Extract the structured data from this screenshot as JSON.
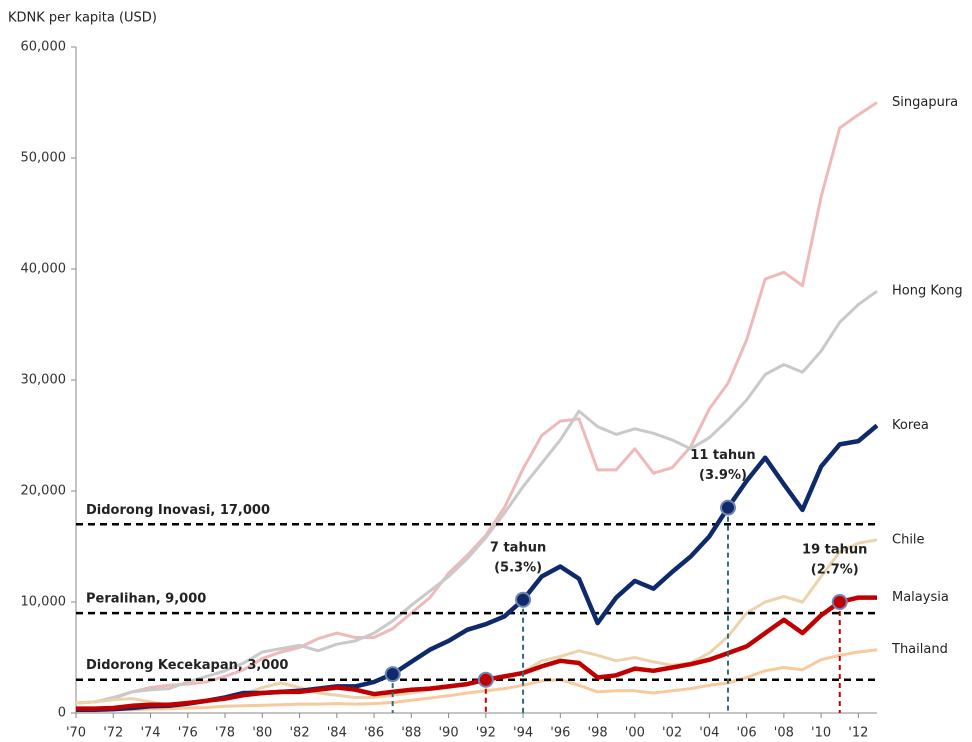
{
  "chart_data": {
    "type": "line",
    "y_label": "KDNK per kapita (USD)",
    "xlim": [
      1970,
      2013
    ],
    "ylim": [
      0,
      60000
    ],
    "x": [
      1970,
      1971,
      1972,
      1973,
      1974,
      1975,
      1976,
      1977,
      1978,
      1979,
      1980,
      1981,
      1982,
      1983,
      1984,
      1985,
      1986,
      1987,
      1988,
      1989,
      1990,
      1991,
      1992,
      1993,
      1994,
      1995,
      1996,
      1997,
      1998,
      1999,
      2000,
      2001,
      2002,
      2003,
      2004,
      2005,
      2006,
      2007,
      2008,
      2009,
      2010,
      2011,
      2012,
      2013
    ],
    "xticks": [
      {
        "value": 1970,
        "label": "'70"
      },
      {
        "value": 1972,
        "label": "'72"
      },
      {
        "value": 1974,
        "label": "'74"
      },
      {
        "value": 1976,
        "label": "'76"
      },
      {
        "value": 1978,
        "label": "'78"
      },
      {
        "value": 1980,
        "label": "'80"
      },
      {
        "value": 1982,
        "label": "'82"
      },
      {
        "value": 1984,
        "label": "'84"
      },
      {
        "value": 1986,
        "label": "'86"
      },
      {
        "value": 1988,
        "label": "'88"
      },
      {
        "value": 1990,
        "label": "'90"
      },
      {
        "value": 1992,
        "label": "'92"
      },
      {
        "value": 1994,
        "label": "'94"
      },
      {
        "value": 1996,
        "label": "'96"
      },
      {
        "value": 1998,
        "label": "'98"
      },
      {
        "value": 2000,
        "label": "'00"
      },
      {
        "value": 2002,
        "label": "'02"
      },
      {
        "value": 2004,
        "label": "'04"
      },
      {
        "value": 2006,
        "label": "'06"
      },
      {
        "value": 2008,
        "label": "'08"
      },
      {
        "value": 2010,
        "label": "'10"
      },
      {
        "value": 2012,
        "label": "'12"
      }
    ],
    "yticks": [
      0,
      {
        "value": 10000,
        "label": "10,000"
      },
      {
        "value": 20000,
        "label": "20,000"
      },
      {
        "value": 30000,
        "label": "30,000"
      },
      {
        "value": 40000,
        "label": "40,000"
      },
      {
        "value": 50000,
        "label": "50,000"
      },
      {
        "value": 60000,
        "label": "60,000"
      }
    ],
    "series": [
      {
        "name": "Singapura",
        "color": "#efb9b9",
        "values": [
          900,
          1000,
          1300,
          1900,
          2300,
          2500,
          2600,
          2800,
          3300,
          3900,
          4900,
          5500,
          5900,
          6700,
          7200,
          6800,
          6800,
          7600,
          9000,
          10400,
          12600,
          14200,
          16000,
          18500,
          22000,
          25000,
          26300,
          26500,
          21900,
          21900,
          23800,
          21600,
          22100,
          24000,
          27400,
          29700,
          33600,
          39100,
          39700,
          38500,
          46500,
          52700,
          53900,
          55000
        ]
      },
      {
        "name": "Hong Kong",
        "color": "#c9c9c9",
        "values": [
          900,
          1000,
          1400,
          1900,
          2100,
          2200,
          2800,
          3300,
          3800,
          4500,
          5500,
          5800,
          6100,
          5600,
          6200,
          6500,
          7200,
          8300,
          9700,
          11000,
          12300,
          13900,
          15800,
          18000,
          20400,
          22500,
          24600,
          27200,
          25800,
          25100,
          25600,
          25200,
          24600,
          23800,
          24800,
          26400,
          28200,
          30500,
          31400,
          30700,
          32600,
          35200,
          36800,
          38000
        ]
      },
      {
        "name": "Korea",
        "color": "#0e2a6b",
        "bold": true,
        "guide_color": "#2e6b7a",
        "markers": [
          1987,
          1994,
          2005
        ],
        "values": [
          300,
          300,
          350,
          450,
          600,
          650,
          850,
          1100,
          1400,
          1800,
          1800,
          1900,
          2000,
          2200,
          2400,
          2400,
          2800,
          3500,
          4600,
          5700,
          6500,
          7500,
          8000,
          8700,
          10200,
          12300,
          13200,
          12100,
          8100,
          10400,
          11900,
          11200,
          12700,
          14100,
          15900,
          18500,
          20900,
          23000,
          20600,
          18300,
          22200,
          24200,
          24500,
          25900
        ]
      },
      {
        "name": "Chile",
        "color": "#ead3ad",
        "values": [
          900,
          1000,
          1200,
          1300,
          1000,
          700,
          800,
          1000,
          1300,
          1700,
          2300,
          2700,
          2300,
          1800,
          1600,
          1400,
          1400,
          1600,
          1800,
          2100,
          2300,
          2600,
          3000,
          3200,
          3700,
          4700,
          5100,
          5600,
          5200,
          4700,
          5000,
          4600,
          4300,
          4500,
          5400,
          6900,
          9000,
          10000,
          10500,
          10000,
          12300,
          14500,
          15300,
          15600
        ]
      },
      {
        "name": "Malaysia",
        "color": "#c00000",
        "bold": true,
        "guide_color": "#c00000",
        "markers": [
          1992,
          2011
        ],
        "values": [
          400,
          400,
          450,
          650,
          750,
          750,
          900,
          1100,
          1300,
          1600,
          1800,
          1900,
          1900,
          2100,
          2300,
          2100,
          1700,
          1900,
          2100,
          2200,
          2400,
          2600,
          3000,
          3300,
          3600,
          4200,
          4700,
          4500,
          3200,
          3400,
          4000,
          3800,
          4100,
          4400,
          4800,
          5400,
          6000,
          7200,
          8400,
          7200,
          8800,
          10000,
          10400,
          10400
        ]
      },
      {
        "name": "Thailand",
        "color": "#f8c99d",
        "values": [
          200,
          200,
          250,
          300,
          350,
          400,
          450,
          500,
          600,
          650,
          700,
          750,
          800,
          800,
          850,
          800,
          850,
          950,
          1150,
          1350,
          1550,
          1800,
          2000,
          2200,
          2500,
          2900,
          3000,
          2500,
          1900,
          2000,
          2000,
          1800,
          2000,
          2200,
          2500,
          2700,
          3200,
          3800,
          4100,
          3900,
          4800,
          5200,
          5500,
          5700
        ]
      }
    ],
    "reference_lines": [
      {
        "value": 17000,
        "label": "Didorong Inovasi, 17,000"
      },
      {
        "value": 9000,
        "label": "Peralihan, 9,000"
      },
      {
        "value": 3000,
        "label": "Didorong Kecekapan, 3,000"
      }
    ],
    "annotations": [
      {
        "series": "Korea",
        "x": 1994,
        "text": "7 tahun",
        "subtext": "(5.3%)"
      },
      {
        "series": "Korea",
        "x": 2005,
        "text": "11 tahun",
        "subtext": "(3.9%)"
      },
      {
        "series": "Malaysia",
        "x": 2011,
        "text": "19 tahun",
        "subtext": "(2.7%)"
      }
    ]
  }
}
